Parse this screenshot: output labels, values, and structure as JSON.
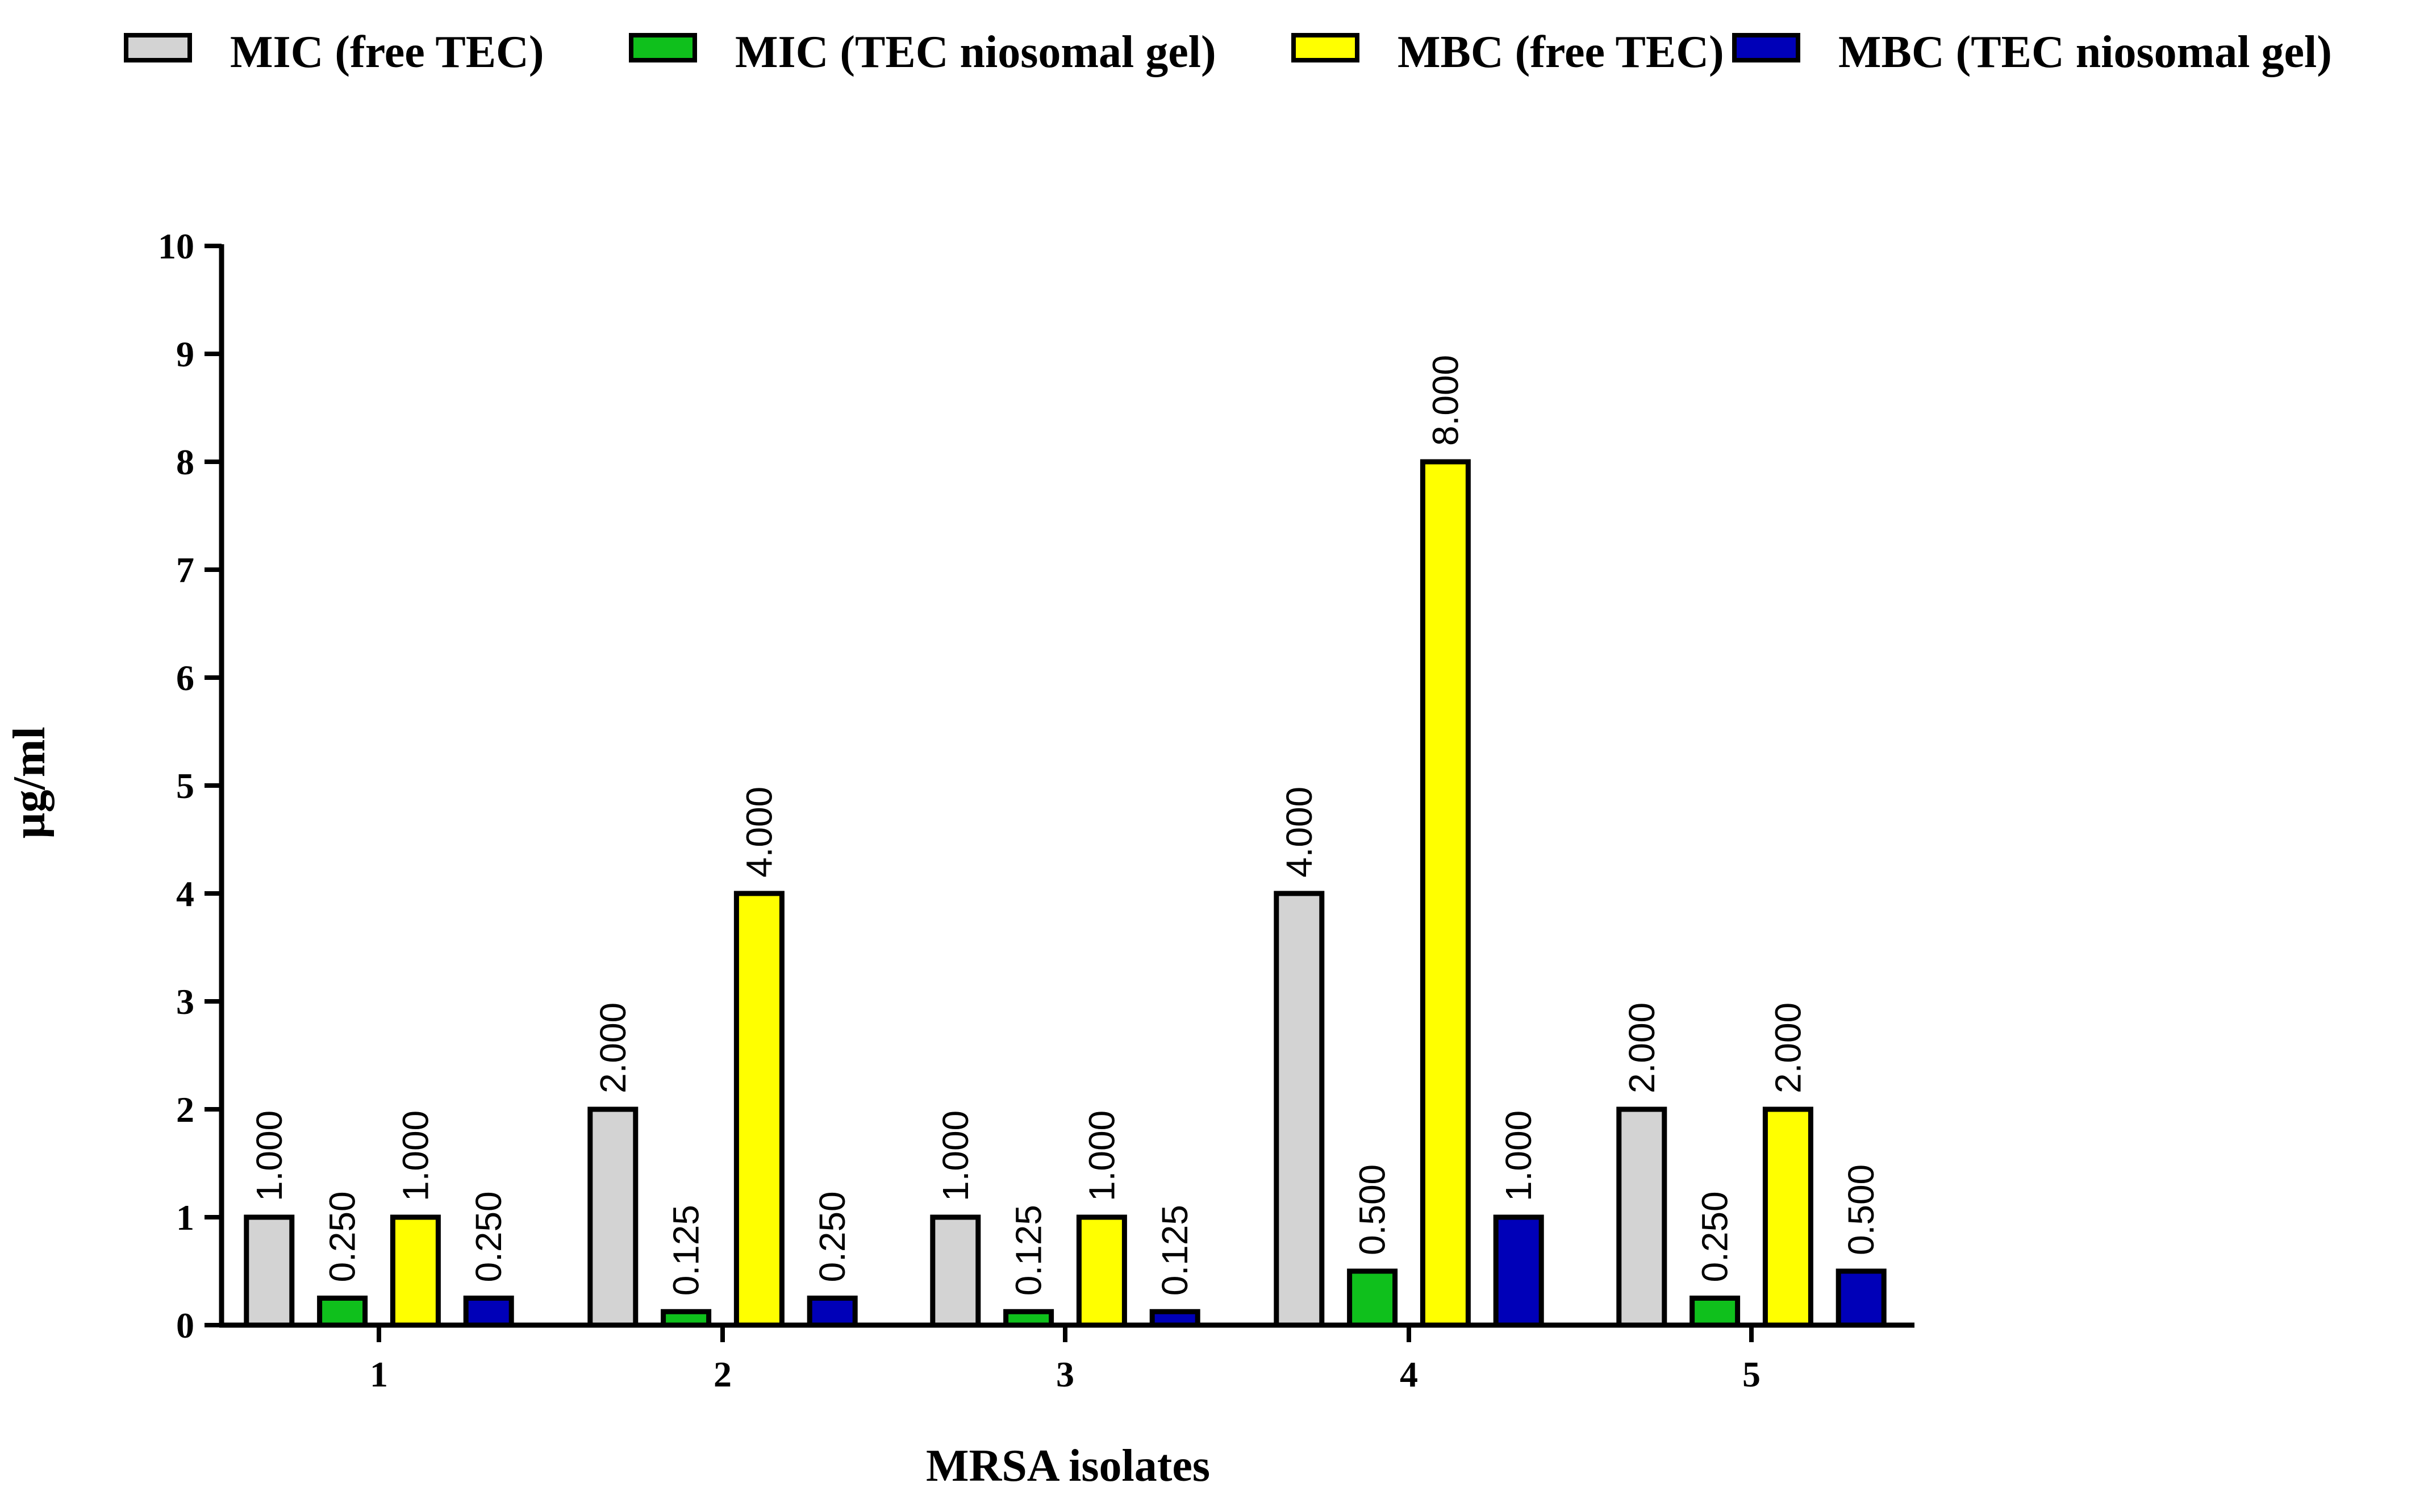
{
  "chart_data": {
    "type": "bar",
    "xlabel": "MRSA isolates",
    "ylabel": "µg/ml",
    "ylim": [
      0,
      10
    ],
    "yticks": [
      "0",
      "1",
      "2",
      "3",
      "4",
      "5",
      "6",
      "7",
      "8",
      "9",
      "10"
    ],
    "categories": [
      "1",
      "2",
      "3",
      "4",
      "5"
    ],
    "legend_position": "top",
    "series": [
      {
        "name": "MIC (free TEC)",
        "color": "#d3d3d3",
        "values": [
          1,
          2,
          1,
          4,
          2
        ],
        "labels": [
          "1.000",
          "2.000",
          "1.000",
          "4.000",
          "2.000"
        ]
      },
      {
        "name": "MIC (TEC niosomal gel)",
        "color": "#0fc01c",
        "values": [
          0.25,
          0.125,
          0.125,
          0.5,
          0.25
        ],
        "labels": [
          "0.250",
          "0.125",
          "0.125",
          "0.500",
          "0.250"
        ]
      },
      {
        "name": "MBC (free TEC)",
        "color": "#ffff00",
        "values": [
          1,
          4,
          1,
          8,
          2
        ],
        "labels": [
          "1.000",
          "4.000",
          "1.000",
          "8.000",
          "2.000"
        ]
      },
      {
        "name": "MBC (TEC niosomal gel)",
        "color": "#0000b8",
        "values": [
          0.25,
          0.25,
          0.125,
          1,
          0.5
        ],
        "labels": [
          "0.250",
          "0.250",
          "0.125",
          "1.000",
          "0.500"
        ]
      }
    ]
  }
}
